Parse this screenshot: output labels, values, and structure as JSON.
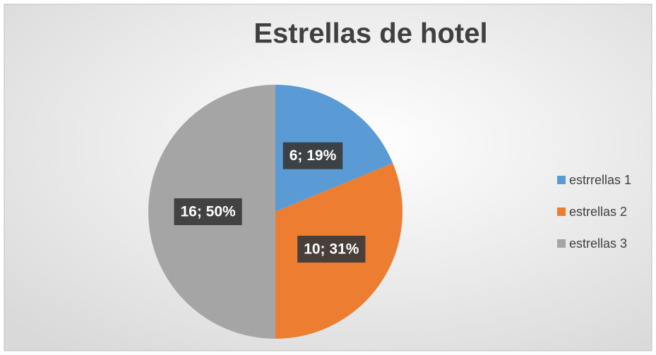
{
  "chart_data": {
    "type": "pie",
    "title": "Estrellas de hotel",
    "categories": [
      "estrrellas 1",
      "estrellas 2",
      "estrellas 3"
    ],
    "values": [
      6,
      10,
      16
    ],
    "value_labels": [
      "6; 19%",
      "10; 31%",
      "16; 50%"
    ],
    "colors": [
      "#5b9bd5",
      "#ed7d31",
      "#a5a5a5"
    ],
    "legend": "right"
  }
}
